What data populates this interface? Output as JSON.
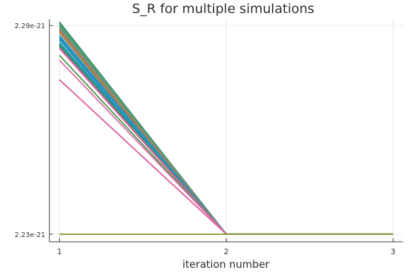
{
  "chart_data": {
    "type": "line",
    "title": "S_R for multiple simulations",
    "xlabel": "iteration number",
    "ylabel": "",
    "x": [
      1,
      2,
      3
    ],
    "xticks": [
      "1",
      "2",
      "3"
    ],
    "yticks": [
      {
        "value": 2.23e-21,
        "label": "2.23e-21"
      },
      {
        "value": 2.29e-21,
        "label": "2.29e-21"
      }
    ],
    "xlim": [
      0.94,
      3.06
    ],
    "ylim": [
      2.2278e-21,
      2.2918e-21
    ],
    "grid": true,
    "legend": "none",
    "series": [
      {
        "color": "#3a8e88",
        "values": [
          2.291e-21,
          2.23e-21,
          2.23e-21
        ]
      },
      {
        "color": "#4a9a6a",
        "values": [
          2.2906e-21,
          2.23e-21,
          2.23e-21
        ]
      },
      {
        "color": "#5aa25a",
        "values": [
          2.29e-21,
          2.23e-21,
          2.23e-21
        ]
      },
      {
        "color": "#3aa0a0",
        "values": [
          2.2896e-21,
          2.23e-21,
          2.23e-21
        ]
      },
      {
        "color": "#a88850",
        "values": [
          2.2892e-21,
          2.23e-21,
          2.23e-21
        ]
      },
      {
        "color": "#7a8aa8",
        "values": [
          2.2888e-21,
          2.23e-21,
          2.23e-21
        ]
      },
      {
        "color": "#c07a3a",
        "values": [
          2.2884e-21,
          2.23e-21,
          2.23e-21
        ]
      },
      {
        "color": "#b07c40",
        "values": [
          2.288e-21,
          2.23e-21,
          2.23e-21
        ]
      },
      {
        "color": "#2aa0b8",
        "values": [
          2.2872e-21,
          2.23e-21,
          2.23e-21
        ]
      },
      {
        "color": "#3a7ed0",
        "values": [
          2.2866e-21,
          2.23e-21,
          2.23e-21
        ]
      },
      {
        "color": "#1aa2a2",
        "values": [
          2.2862e-21,
          2.23e-21,
          2.23e-21
        ]
      },
      {
        "color": "#2f8fd8",
        "values": [
          2.2858e-21,
          2.23e-21,
          2.23e-21
        ]
      },
      {
        "color": "#1a9a8a",
        "values": [
          2.285e-21,
          2.23e-21,
          2.23e-21
        ]
      },
      {
        "color": "#16a08f",
        "values": [
          2.2846e-21,
          2.23e-21,
          2.23e-21
        ]
      },
      {
        "color": "#3a8a6a",
        "values": [
          2.2842e-21,
          2.23e-21,
          2.23e-21
        ]
      },
      {
        "color": "#7a7a90",
        "values": [
          2.2838e-21,
          2.23e-21,
          2.23e-21
        ]
      },
      {
        "color": "#e060a0",
        "values": [
          2.2834e-21,
          2.23e-21,
          2.23e-21
        ]
      },
      {
        "color": "#4a9a4a",
        "values": [
          2.2814e-21,
          2.23e-21,
          2.23e-21
        ]
      },
      {
        "color": "#e070b0",
        "values": [
          2.28e-21,
          2.23e-21,
          2.23e-21
        ]
      },
      {
        "color": "#e060a0",
        "values": [
          2.2744e-21,
          2.23e-21,
          2.23e-21
        ]
      },
      {
        "color": "#8a9a30",
        "values": [
          2.23e-21,
          2.23e-21,
          2.23e-21
        ]
      }
    ]
  }
}
